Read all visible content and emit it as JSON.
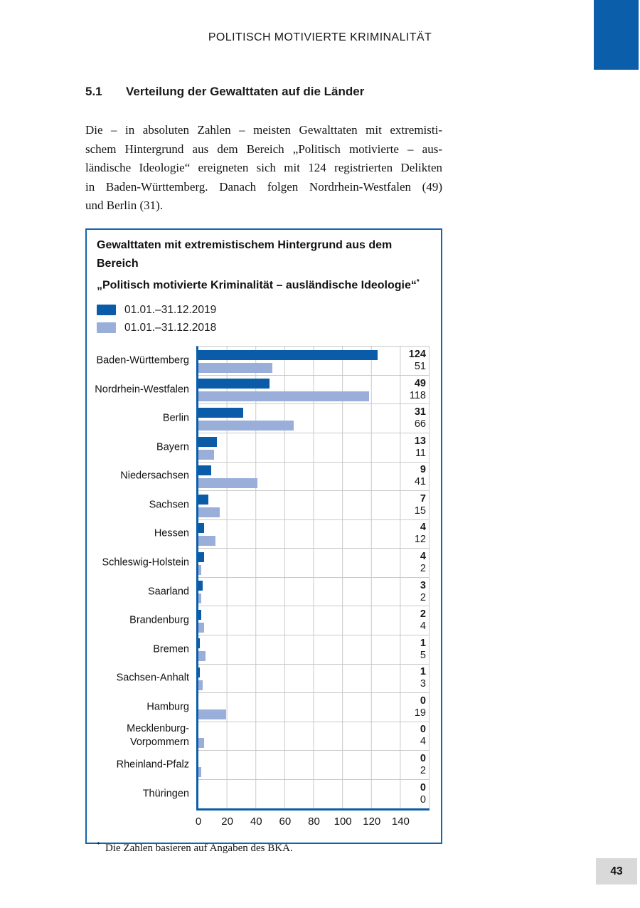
{
  "page": {
    "header": "POLITISCH MOTIVIERTE KRIMINALITÄT",
    "page_number": "43",
    "accent_color": "#0b5ea9",
    "grid_color": "#c9c9c9",
    "page_number_bg": "#d9d9d9"
  },
  "section": {
    "number": "5.1",
    "title": "Verteilung der Gewalttaten auf die Länder"
  },
  "paragraph": {
    "lines": [
      "Die – in absoluten Zahlen – meisten Gewalttaten mit extremisti-",
      "schem Hintergrund aus dem Bereich „Politisch motivierte – aus-",
      "ländische Ideologie“ ereigneten sich mit 124 registrierten Delikten",
      "in Baden-Württemberg. Danach folgen Nordrhein-Westfalen (49)",
      "und Berlin (31)."
    ]
  },
  "chart": {
    "title_line1": "Gewalttaten mit extremistischem Hintergrund aus dem Bereich",
    "title_line2": "„Politisch motivierte Kriminalität – ausländische Ideologie“",
    "title_marker": "*",
    "footnote_marker": "*",
    "footnote": "Die Zahlen basieren auf Angaben des BKA."
  },
  "chart_data": {
    "type": "bar",
    "orientation": "horizontal",
    "title": "Gewalttaten mit extremistischem Hintergrund aus dem Bereich „Politisch motivierte Kriminalität – ausländische Ideologie“",
    "categories": [
      "Baden-Württemberg",
      "Nordrhein-Westfalen",
      "Berlin",
      "Bayern",
      "Niedersachsen",
      "Sachsen",
      "Hessen",
      "Schleswig-Holstein",
      "Saarland",
      "Brandenburg",
      "Bremen",
      "Sachsen-Anhalt",
      "Hamburg",
      "Mecklenburg-Vorpommern",
      "Rheinland-Pfalz",
      "Thüringen"
    ],
    "series": [
      {
        "name": "01.01.–31.12.2019",
        "color": "#0a5ca8",
        "values": [
          124,
          49,
          31,
          13,
          9,
          7,
          4,
          4,
          3,
          2,
          1,
          1,
          0,
          0,
          0,
          0
        ]
      },
      {
        "name": "01.01.–31.12.2018",
        "color": "#9aaeda",
        "values": [
          51,
          118,
          66,
          11,
          41,
          15,
          12,
          2,
          2,
          4,
          5,
          3,
          19,
          4,
          2,
          0
        ]
      }
    ],
    "xlim": [
      0,
      160
    ],
    "xticks": [
      0,
      20,
      40,
      60,
      80,
      100,
      120,
      140
    ],
    "grid": true,
    "value_labels": true,
    "legend_position": "top-left"
  }
}
